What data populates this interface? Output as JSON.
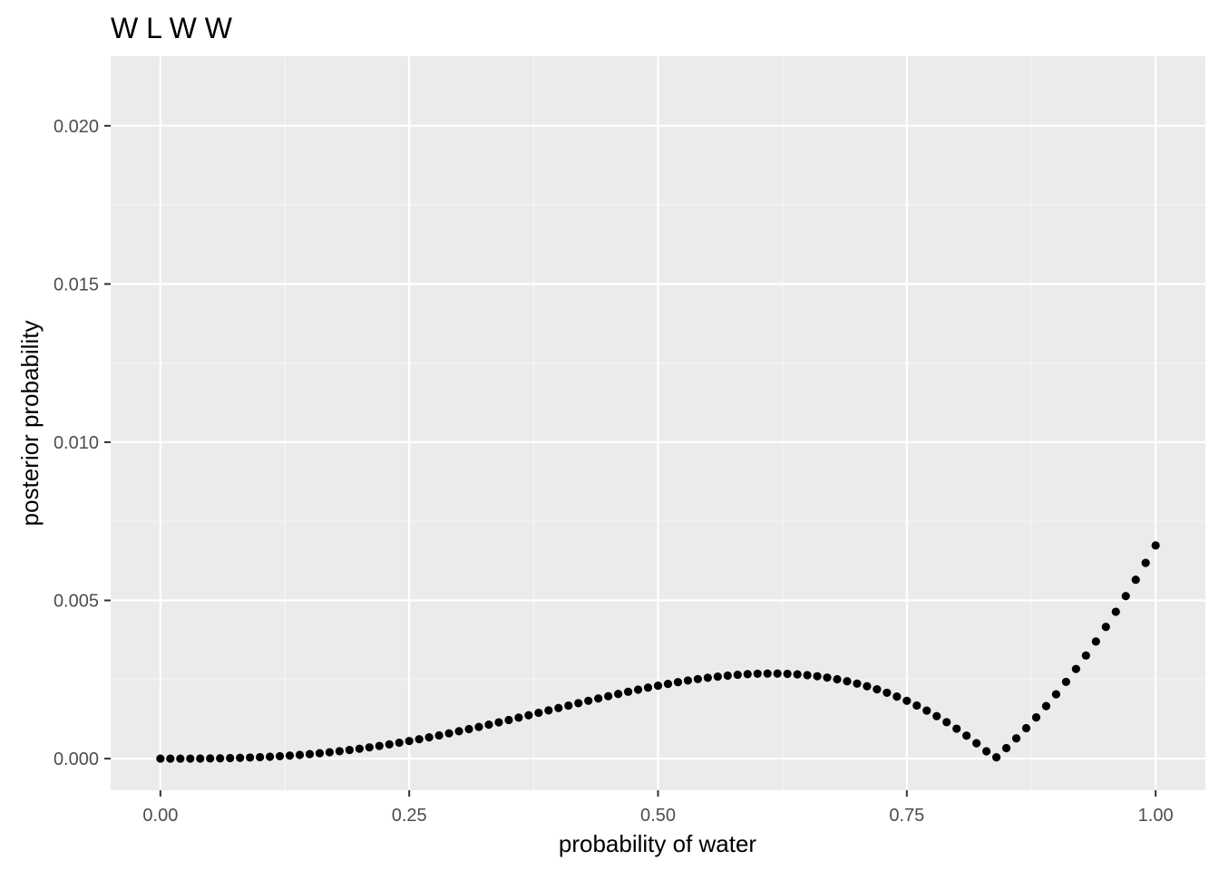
{
  "chart_data": {
    "type": "scatter",
    "title": "W L W W",
    "xlabel": "probability of water",
    "ylabel": "posterior probability",
    "xlim": [
      -0.05,
      1.05
    ],
    "ylim": [
      -0.001,
      0.0222
    ],
    "x_ticks": [
      0,
      0.25,
      0.5,
      0.75,
      1
    ],
    "x_tick_labels": [
      "0.00",
      "0.25",
      "0.50",
      "0.75",
      "1.00"
    ],
    "y_ticks": [
      0,
      0.005,
      0.01,
      0.015,
      0.02
    ],
    "y_tick_labels": [
      "0.000",
      "0.005",
      "0.010",
      "0.015",
      "0.020"
    ],
    "grid": true,
    "legend": "none",
    "colors": {
      "panel_background": "#ebebeb",
      "grid_major": "#ffffff",
      "grid_minor": "#f5f5f5",
      "points": "#000000",
      "tick_label": "#4d4d4d",
      "tick_mark": "#333333"
    },
    "series": [
      {
        "x": [
          0,
          0.01,
          0.02,
          0.03,
          0.04,
          0.05,
          0.06,
          0.07,
          0.08,
          0.09,
          0.1,
          0.11,
          0.12,
          0.13,
          0.14,
          0.15,
          0.16,
          0.17,
          0.18,
          0.19,
          0.2,
          0.21,
          0.22,
          0.23,
          0.24,
          0.25,
          0.26,
          0.27,
          0.28,
          0.29,
          0.3,
          0.31,
          0.32,
          0.33,
          0.34,
          0.35,
          0.36,
          0.37,
          0.38,
          0.39,
          0.4,
          0.41,
          0.42,
          0.43,
          0.44,
          0.45,
          0.46,
          0.47,
          0.48,
          0.49,
          0.5,
          0.51,
          0.52,
          0.53,
          0.54,
          0.55,
          0.56,
          0.57,
          0.58,
          0.59,
          0.6,
          0.61,
          0.62,
          0.63,
          0.64,
          0.65,
          0.66,
          0.67,
          0.68,
          0.69,
          0.7,
          0.71,
          0.72,
          0.73,
          0.74,
          0.75,
          0.76,
          0.77,
          0.78,
          0.79,
          0.8,
          0.81,
          0.82,
          0.83,
          0.84,
          0.85,
          0.86,
          0.87,
          0.88,
          0.89,
          0.9,
          0.91,
          0.92,
          0.93,
          0.94,
          0.95,
          0.96,
          0.97,
          0.98,
          0.99,
          1
        ],
        "y": [
          0,
          5e-08,
          3.9e-07,
          1.31e-06,
          3.1e-06,
          5.99e-06,
          1.024e-05,
          1.613e-05,
          2.377e-05,
          3.341e-05,
          4.527e-05,
          5.946e-05,
          7.619e-05,
          9.559e-05,
          0.00011776,
          0.00014284,
          0.00017082,
          0.00020182,
          0.00023581,
          0.00027282,
          0.00031283,
          0.00035579,
          0.00040169,
          0.00045047,
          0.00050203,
          0.00055632,
          0.00061321,
          0.00067262,
          0.0007344,
          0.00079842,
          0.00086454,
          0.00093259,
          0.0010024,
          0.00107379,
          0.00114656,
          0.0012205,
          0.00129541,
          0.00137105,
          0.0014472,
          0.00152361,
          0.00160005,
          0.00167624,
          0.00175193,
          0.00182684,
          0.00190069,
          0.00197319,
          0.00204405,
          0.00211297,
          0.00217963,
          0.00224373,
          0.00230493,
          0.00236291,
          0.00241734,
          0.00246787,
          0.00251415,
          0.00255584,
          0.00259257,
          0.00262397,
          0.00264968,
          0.00266932,
          0.0026825,
          0.00268884,
          0.00268794,
          0.00267941,
          0.00266283,
          0.0026378,
          0.00260389,
          0.00256068,
          0.00250773,
          0.00244461,
          0.00237087,
          0.00228606,
          0.00218971,
          0.00208136,
          0.00196054,
          0.00182677,
          0.00167957,
          0.00151845,
          0.00134291,
          0.00115245,
          0.00094657,
          0.00072474,
          0.00048645,
          0.00023117,
          4.163e-05,
          0.00033244,
          0.00063948,
          0.00096295,
          0.00130302,
          0.00165988,
          0.00203368,
          0.00242459,
          0.00283275,
          0.00325832,
          0.00370144,
          0.00416225,
          0.00464089,
          0.00513748,
          0.00565216,
          0.00618505,
          0.00673627
        ]
      }
    ]
  }
}
